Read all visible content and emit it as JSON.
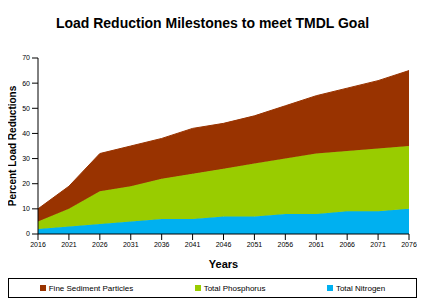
{
  "chart_data": {
    "type": "area",
    "stacked": true,
    "title": "Load Reduction Milestones to meet TMDL Goal",
    "x_label": "Years",
    "y_label": "Percent Load Reductions",
    "x": [
      2016,
      2021,
      2026,
      2031,
      2036,
      2041,
      2046,
      2051,
      2056,
      2061,
      2066,
      2071,
      2076
    ],
    "xlim": [
      2016,
      2076
    ],
    "xticks": [
      2016,
      2021,
      2026,
      2031,
      2036,
      2041,
      2046,
      2051,
      2056,
      2061,
      2066,
      2071,
      2076
    ],
    "ylim": [
      0,
      70
    ],
    "yticks": [
      0,
      10,
      20,
      30,
      40,
      50,
      60,
      70
    ],
    "grid": false,
    "legend": "bottom",
    "series": [
      {
        "name": "Total Nitrogen",
        "color": "#00b0f0",
        "values": [
          2,
          3,
          4,
          5,
          6,
          6,
          7,
          7,
          8,
          8,
          9,
          9,
          10
        ]
      },
      {
        "name": "Total Phosphorus",
        "color": "#99cc00",
        "values": [
          3,
          7,
          13,
          14,
          16,
          18,
          19,
          21,
          22,
          24,
          24,
          25,
          25
        ]
      },
      {
        "name": "Fine Sediment Particles",
        "color": "#993300",
        "values": [
          5,
          9,
          15,
          16,
          16,
          18,
          18,
          19,
          21,
          23,
          25,
          27,
          30
        ]
      }
    ]
  }
}
